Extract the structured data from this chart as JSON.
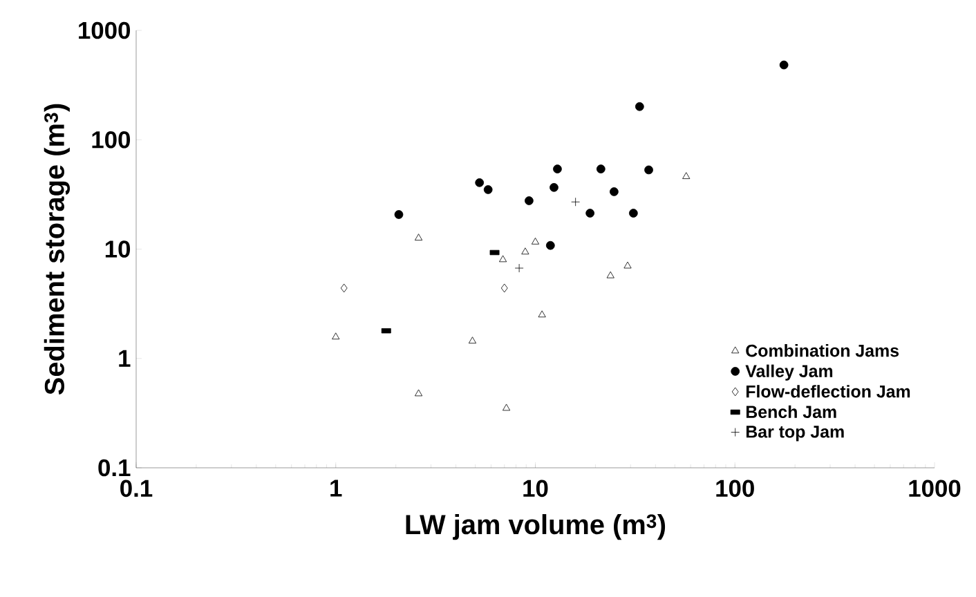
{
  "chart_data": {
    "type": "scatter",
    "xlabel": "LW jam volume (m$^{3}$)",
    "ylabel": "Sediment storage (m$^{3}$)",
    "log": "xy",
    "grid": false,
    "legend": "bottom right",
    "xlim": [
      0.1,
      1000
    ],
    "ylim": [
      0.1,
      1000
    ],
    "xticks": [
      0.1,
      1,
      10,
      100,
      1000
    ],
    "yticks": [
      0.1,
      1,
      10,
      100,
      1000
    ],
    "series": [
      {
        "name": "Combination Jams",
        "color": "#000000",
        "marker": "triangle",
        "x": [
          1.0,
          2.6,
          2.6,
          4.84,
          6.88,
          7.16,
          8.9,
          10,
          10.8,
          23.8,
          29,
          57
        ],
        "values": [
          1.57,
          12.6,
          0.475,
          1.44,
          8.0,
          0.35,
          9.4,
          11.6,
          2.5,
          5.7,
          7.0,
          46
        ]
      },
      {
        "name": "Valley Jam",
        "color": "#000000",
        "marker": "circle",
        "x": [
          2.07,
          5.25,
          5.8,
          9.3,
          11.9,
          12.4,
          12.9,
          18.8,
          21.3,
          24.8,
          31,
          33.3,
          37,
          176
        ],
        "values": [
          20.7,
          40.5,
          35,
          27.7,
          10.8,
          36.6,
          54,
          21.3,
          54,
          33.5,
          21.3,
          201,
          53,
          483
        ]
      },
      {
        "name": "Flow-deflection Jam",
        "color": "#000000",
        "marker": "diamond",
        "x": [
          1.1,
          7.0
        ],
        "values": [
          4.4,
          4.4
        ]
      },
      {
        "name": "Bench Jam",
        "color": "#000000",
        "marker": "square",
        "x": [
          1.79,
          6.25
        ],
        "values": [
          1.79,
          9.3
        ]
      },
      {
        "name": "Bar top Jam",
        "color": "#000000",
        "marker": "cross",
        "x": [
          8.3,
          15.9
        ],
        "values": [
          6.7,
          27
        ]
      }
    ]
  }
}
